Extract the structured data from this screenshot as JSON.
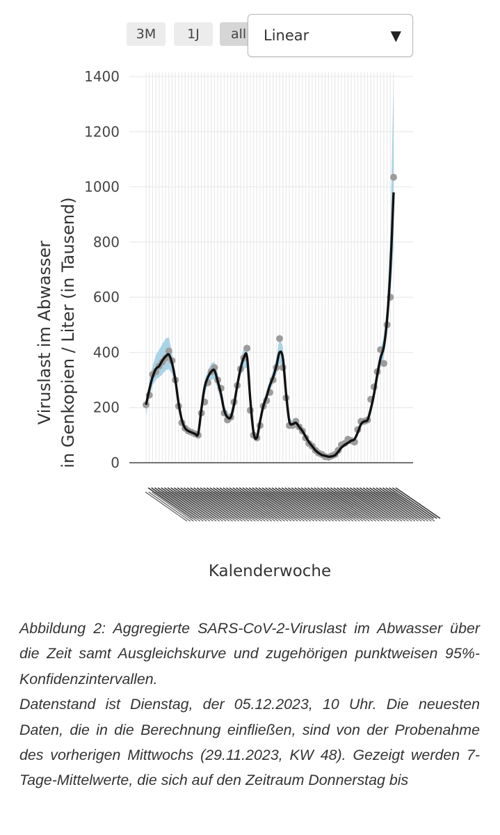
{
  "toolbar": {
    "range_buttons": [
      "3M",
      "1J",
      "all"
    ],
    "active_range": "all",
    "scale_select": {
      "value": "Linear"
    }
  },
  "chart_data": {
    "type": "line",
    "xlabel": "Kalenderwoche",
    "ylabel_line1": "Viruslast im Abwasser",
    "ylabel_line2": "in Genkopien / Liter (in Tausend)",
    "ylim": [
      0,
      1400
    ],
    "yticks": [
      0,
      200,
      400,
      600,
      800,
      1000,
      1200,
      1400
    ],
    "grid": true,
    "x_tick_labels_legible": false,
    "series": [
      {
        "kind": "points",
        "values": [
          210,
          245,
          320,
          330,
          350,
          365,
          380,
          405,
          370,
          300,
          205,
          145,
          125,
          115,
          110,
          105,
          100,
          180,
          220,
          290,
          330,
          345,
          300,
          270,
          180,
          155,
          165,
          220,
          280,
          340,
          380,
          415,
          190,
          100,
          90,
          135,
          205,
          225,
          255,
          300,
          345,
          450,
          345,
          235,
          135,
          135,
          150,
          130,
          115,
          90,
          70,
          60,
          45,
          35,
          30,
          22,
          20,
          25,
          30,
          45,
          65,
          70,
          85,
          80,
          75,
          120,
          150,
          150,
          155,
          230,
          275,
          330,
          410,
          360,
          500,
          600,
          1035
        ]
      },
      {
        "kind": "smooth",
        "values": [
          210,
          265,
          310,
          340,
          350,
          370,
          385,
          392,
          360,
          300,
          215,
          155,
          125,
          115,
          110,
          105,
          105,
          195,
          275,
          310,
          330,
          335,
          295,
          250,
          190,
          165,
          165,
          210,
          280,
          340,
          380,
          385,
          230,
          110,
          90,
          150,
          205,
          240,
          280,
          310,
          350,
          400,
          380,
          250,
          150,
          140,
          145,
          130,
          115,
          95,
          75,
          60,
          45,
          35,
          28,
          25,
          22,
          23,
          27,
          40,
          55,
          65,
          72,
          80,
          85,
          110,
          140,
          150,
          155,
          195,
          250,
          320,
          380,
          420,
          520,
          700,
          980
        ]
      },
      {
        "kind": "ci_upper",
        "values": [
          180,
          300,
          350,
          390,
          410,
          430,
          450,
          455,
          400,
          320,
          240,
          165,
          140,
          125,
          115,
          110,
          115,
          220,
          300,
          335,
          360,
          365,
          325,
          275,
          210,
          180,
          180,
          235,
          305,
          365,
          420,
          430,
          260,
          125,
          100,
          170,
          225,
          260,
          300,
          335,
          380,
          455,
          420,
          280,
          165,
          150,
          155,
          140,
          125,
          105,
          80,
          65,
          50,
          40,
          32,
          28,
          25,
          26,
          30,
          45,
          60,
          70,
          78,
          86,
          92,
          118,
          150,
          160,
          170,
          215,
          275,
          350,
          410,
          460,
          570,
          830,
          1400
        ]
      },
      {
        "kind": "ci_lower",
        "values": [
          170,
          230,
          280,
          300,
          310,
          320,
          335,
          340,
          320,
          280,
          190,
          145,
          112,
          105,
          100,
          98,
          95,
          170,
          245,
          285,
          300,
          305,
          265,
          225,
          170,
          150,
          150,
          185,
          255,
          315,
          340,
          345,
          200,
          95,
          82,
          130,
          185,
          220,
          260,
          285,
          320,
          360,
          345,
          225,
          135,
          130,
          135,
          120,
          105,
          85,
          68,
          55,
          40,
          30,
          24,
          22,
          19,
          20,
          24,
          35,
          50,
          60,
          66,
          74,
          78,
          100,
          130,
          140,
          140,
          175,
          225,
          290,
          350,
          380,
          470,
          600,
          790
        ]
      }
    ],
    "colors": {
      "ci_band": "#abd3e6",
      "line": "#111111",
      "points": "#9c9c9c",
      "grid": "#e9e9e9",
      "baseline": "#444444"
    }
  },
  "caption": {
    "line1": "Abbildung 2: Aggregierte SARS-CoV-2-Viruslast im Abwasser über die Zeit samt Ausgleichskurve und zugehörigen punktweisen 95%-Konfidenzintervallen.",
    "line2": "Datenstand ist Dienstag, der 05.12.2023, 10 Uhr. Die neuesten Daten, die in die Berechnung einfließen, sind von der Probenahme des vorherigen Mittwochs (29.11.2023, KW 48). Gezeigt werden 7-Tage-Mittelwerte, die sich auf den Zeitraum Donnerstag bis"
  }
}
